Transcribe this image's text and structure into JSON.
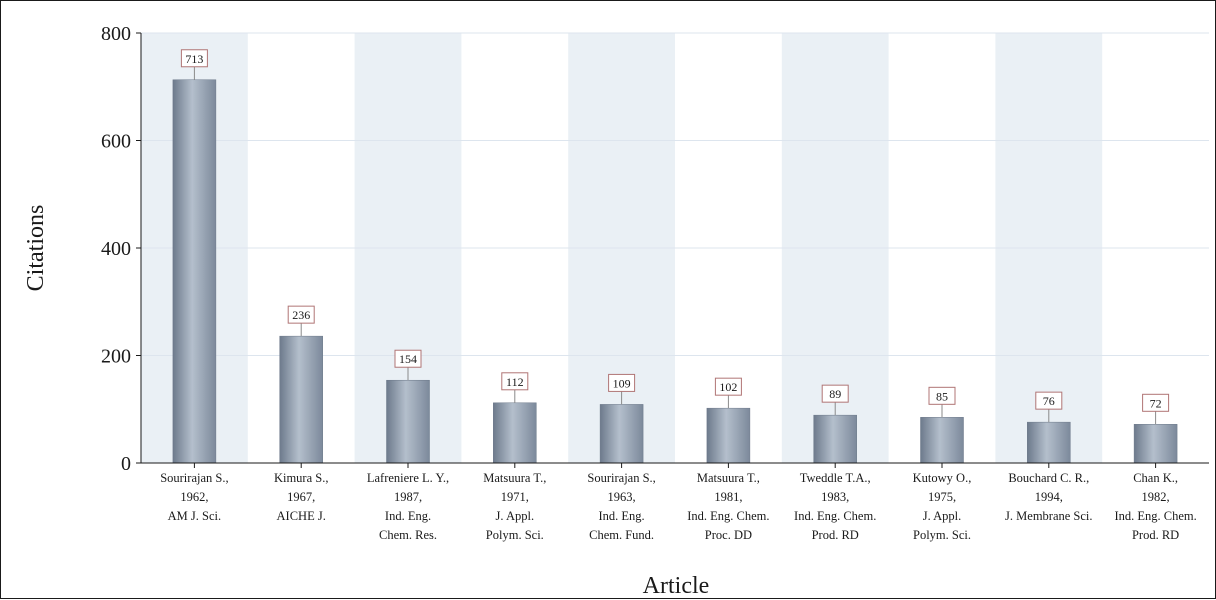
{
  "chart_data": {
    "type": "bar",
    "xlabel": "Article",
    "ylabel": "Citations",
    "ylim": [
      0,
      800
    ],
    "yticks": [
      0,
      200,
      400,
      600,
      800
    ],
    "grid": true,
    "categories": [
      [
        "Sourirajan S.,",
        "1962,",
        "AM J. Sci."
      ],
      [
        "Kimura S.,",
        "1967,",
        "AICHE J."
      ],
      [
        "Lafreniere L. Y.,",
        "1987,",
        "Ind. Eng.",
        "Chem. Res."
      ],
      [
        "Matsuura T.,",
        "1971,",
        "J. Appl.",
        "Polym. Sci."
      ],
      [
        "Sourirajan S.,",
        "1963,",
        "Ind. Eng.",
        "Chem. Fund."
      ],
      [
        "Matsuura T.,",
        "1981,",
        "Ind. Eng. Chem.",
        "Proc. DD"
      ],
      [
        "Tweddle T.A.,",
        "1983,",
        "Ind. Eng. Chem.",
        "Prod. RD"
      ],
      [
        "Kutowy O.,",
        "1975,",
        "J. Appl.",
        "Polym. Sci."
      ],
      [
        "Bouchard C. R.,",
        "1994,",
        "J. Membrane Sci."
      ],
      [
        "Chan K.,",
        "1982,",
        "Ind. Eng. Chem.",
        "Prod. RD"
      ]
    ],
    "values": [
      713,
      236,
      154,
      112,
      109,
      102,
      89,
      85,
      76,
      72
    ],
    "colors": {
      "bar": "#8e9cae",
      "band": "#eaf0f5",
      "label_border": "#b07575"
    }
  }
}
